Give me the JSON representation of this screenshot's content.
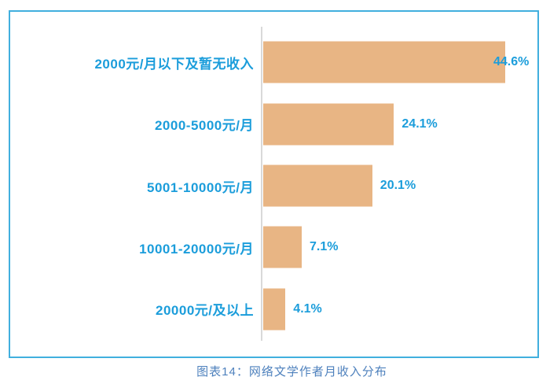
{
  "chart_data": {
    "type": "bar",
    "orientation": "horizontal",
    "title": "图表14：网络文学作者月收入分布",
    "categories": [
      "2000元/月以下及暂无收入",
      "2000-5000元/月",
      "5001-10000元/月",
      "10001-20000元/月",
      "20000元/及以上"
    ],
    "values": [
      44.6,
      24.1,
      20.1,
      7.1,
      4.1
    ],
    "value_labels": [
      "44.6%",
      "24.1%",
      "20.1%",
      "7.1%",
      "4.1%"
    ],
    "xlim": [
      0,
      50
    ],
    "grid": "off",
    "legend": "none",
    "colors": {
      "bar_fill": "#E8B584",
      "label_text": "#1B9DDB",
      "axis_line": "#D9D9D9",
      "frame_border": "#41AFDE",
      "caption_text": "#4E81BD",
      "background": "#FFFFFF"
    }
  }
}
